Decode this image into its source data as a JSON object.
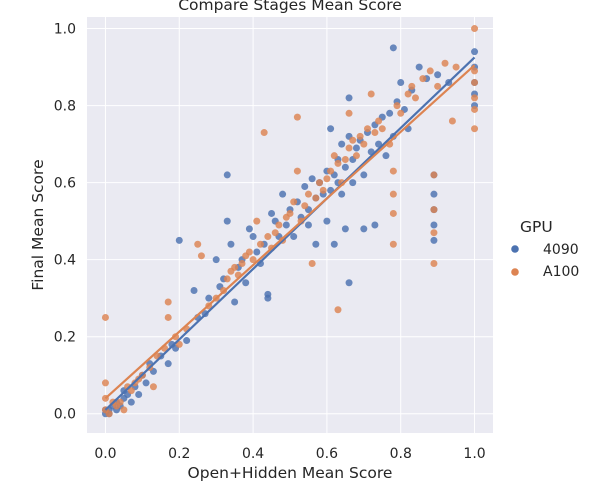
{
  "chart_data": {
    "type": "scatter",
    "title": "Compare Stages Mean Score",
    "xlabel": "Open+Hidden Mean Score",
    "ylabel": "Final Mean Score",
    "xlim": [
      -0.05,
      1.05
    ],
    "ylim": [
      -0.05,
      1.03
    ],
    "xticks": [
      "0.0",
      "0.2",
      "0.4",
      "0.6",
      "0.8",
      "1.0"
    ],
    "yticks": [
      "0.0",
      "0.2",
      "0.4",
      "0.6",
      "0.8",
      "1.0"
    ],
    "grid": true,
    "background": "#eaeaf2",
    "legend": {
      "title": "GPU",
      "placement": "right"
    },
    "series": [
      {
        "name": "4090",
        "color": "#4c72b0",
        "fit": {
          "from": [
            0.0,
            0.01
          ],
          "to": [
            1.0,
            0.925
          ]
        },
        "points": [
          [
            0,
            0
          ],
          [
            0,
            0.01
          ],
          [
            0.01,
            0
          ],
          [
            0.01,
            0.01
          ],
          [
            0.02,
            0.02
          ],
          [
            0.03,
            0.01
          ],
          [
            0.03,
            0.03
          ],
          [
            0.04,
            0.02
          ],
          [
            0.05,
            0.04
          ],
          [
            0.05,
            0.06
          ],
          [
            0.06,
            0.05
          ],
          [
            0.07,
            0.03
          ],
          [
            0.08,
            0.07
          ],
          [
            0.09,
            0.05
          ],
          [
            0.1,
            0.1
          ],
          [
            0.11,
            0.08
          ],
          [
            0.12,
            0.13
          ],
          [
            0.13,
            0.11
          ],
          [
            0.15,
            0.15
          ],
          [
            0.17,
            0.13
          ],
          [
            0.18,
            0.18
          ],
          [
            0.19,
            0.17
          ],
          [
            0.2,
            0.45
          ],
          [
            0.22,
            0.19
          ],
          [
            0.24,
            0.32
          ],
          [
            0.25,
            0.25
          ],
          [
            0.27,
            0.26
          ],
          [
            0.28,
            0.3
          ],
          [
            0.3,
            0.4
          ],
          [
            0.31,
            0.33
          ],
          [
            0.32,
            0.35
          ],
          [
            0.33,
            0.5
          ],
          [
            0.33,
            0.62
          ],
          [
            0.34,
            0.44
          ],
          [
            0.35,
            0.29
          ],
          [
            0.36,
            0.38
          ],
          [
            0.37,
            0.4
          ],
          [
            0.38,
            0.34
          ],
          [
            0.39,
            0.48
          ],
          [
            0.4,
            0.46
          ],
          [
            0.41,
            0.42
          ],
          [
            0.42,
            0.39
          ],
          [
            0.43,
            0.44
          ],
          [
            0.44,
            0.3
          ],
          [
            0.44,
            0.31
          ],
          [
            0.45,
            0.52
          ],
          [
            0.46,
            0.5
          ],
          [
            0.47,
            0.46
          ],
          [
            0.48,
            0.57
          ],
          [
            0.49,
            0.49
          ],
          [
            0.5,
            0.53
          ],
          [
            0.51,
            0.46
          ],
          [
            0.52,
            0.55
          ],
          [
            0.53,
            0.51
          ],
          [
            0.54,
            0.59
          ],
          [
            0.55,
            0.53
          ],
          [
            0.55,
            0.49
          ],
          [
            0.56,
            0.61
          ],
          [
            0.57,
            0.56
          ],
          [
            0.57,
            0.44
          ],
          [
            0.58,
            0.6
          ],
          [
            0.59,
            0.57
          ],
          [
            0.6,
            0.63
          ],
          [
            0.6,
            0.5
          ],
          [
            0.61,
            0.58
          ],
          [
            0.61,
            0.74
          ],
          [
            0.62,
            0.62
          ],
          [
            0.62,
            0.44
          ],
          [
            0.63,
            0.66
          ],
          [
            0.63,
            0.6
          ],
          [
            0.64,
            0.7
          ],
          [
            0.64,
            0.57
          ],
          [
            0.65,
            0.64
          ],
          [
            0.65,
            0.48
          ],
          [
            0.66,
            0.72
          ],
          [
            0.66,
            0.82
          ],
          [
            0.66,
            0.34
          ],
          [
            0.67,
            0.66
          ],
          [
            0.67,
            0.6
          ],
          [
            0.68,
            0.69
          ],
          [
            0.69,
            0.71
          ],
          [
            0.7,
            0.62
          ],
          [
            0.7,
            0.48
          ],
          [
            0.71,
            0.73
          ],
          [
            0.72,
            0.68
          ],
          [
            0.73,
            0.75
          ],
          [
            0.73,
            0.49
          ],
          [
            0.74,
            0.7
          ],
          [
            0.75,
            0.77
          ],
          [
            0.76,
            0.67
          ],
          [
            0.77,
            0.78
          ],
          [
            0.78,
            0.72
          ],
          [
            0.78,
            0.95
          ],
          [
            0.79,
            0.81
          ],
          [
            0.8,
            0.86
          ],
          [
            0.81,
            0.79
          ],
          [
            0.82,
            0.74
          ],
          [
            0.83,
            0.84
          ],
          [
            0.85,
            0.9
          ],
          [
            0.87,
            0.87
          ],
          [
            0.89,
            0.62
          ],
          [
            0.89,
            0.57
          ],
          [
            0.89,
            0.53
          ],
          [
            0.89,
            0.49
          ],
          [
            0.89,
            0.45
          ],
          [
            0.9,
            0.88
          ],
          [
            0.93,
            0.86
          ],
          [
            1,
            0.94
          ],
          [
            1,
            0.9
          ],
          [
            1,
            0.86
          ],
          [
            1,
            0.83
          ],
          [
            1,
            0.8
          ]
        ]
      },
      {
        "name": "A100",
        "color": "#dd8452",
        "fit": {
          "from": [
            0.0,
            0.04
          ],
          "to": [
            1.0,
            0.905
          ]
        },
        "points": [
          [
            0,
            0.25
          ],
          [
            0,
            0.08
          ],
          [
            0,
            0.04
          ],
          [
            0,
            0.01
          ],
          [
            0.01,
            0
          ],
          [
            0.02,
            0.03
          ],
          [
            0.03,
            0.02
          ],
          [
            0.04,
            0.03
          ],
          [
            0.05,
            0.01
          ],
          [
            0.06,
            0.07
          ],
          [
            0.07,
            0.06
          ],
          [
            0.08,
            0.08
          ],
          [
            0.09,
            0.09
          ],
          [
            0.1,
            0.1
          ],
          [
            0.12,
            0.12
          ],
          [
            0.13,
            0.07
          ],
          [
            0.14,
            0.15
          ],
          [
            0.16,
            0.17
          ],
          [
            0.17,
            0.25
          ],
          [
            0.17,
            0.29
          ],
          [
            0.19,
            0.2
          ],
          [
            0.2,
            0.18
          ],
          [
            0.22,
            0.22
          ],
          [
            0.25,
            0.44
          ],
          [
            0.26,
            0.41
          ],
          [
            0.28,
            0.28
          ],
          [
            0.3,
            0.3
          ],
          [
            0.32,
            0.32
          ],
          [
            0.33,
            0.35
          ],
          [
            0.34,
            0.37
          ],
          [
            0.35,
            0.38
          ],
          [
            0.36,
            0.36
          ],
          [
            0.37,
            0.39
          ],
          [
            0.38,
            0.41
          ],
          [
            0.39,
            0.42
          ],
          [
            0.4,
            0.4
          ],
          [
            0.41,
            0.5
          ],
          [
            0.42,
            0.44
          ],
          [
            0.43,
            0.73
          ],
          [
            0.44,
            0.46
          ],
          [
            0.45,
            0.43
          ],
          [
            0.46,
            0.47
          ],
          [
            0.47,
            0.49
          ],
          [
            0.48,
            0.45
          ],
          [
            0.49,
            0.51
          ],
          [
            0.5,
            0.52
          ],
          [
            0.51,
            0.55
          ],
          [
            0.52,
            0.77
          ],
          [
            0.52,
            0.63
          ],
          [
            0.53,
            0.5
          ],
          [
            0.54,
            0.54
          ],
          [
            0.55,
            0.57
          ],
          [
            0.56,
            0.39
          ],
          [
            0.57,
            0.56
          ],
          [
            0.58,
            0.6
          ],
          [
            0.59,
            0.58
          ],
          [
            0.6,
            0.61
          ],
          [
            0.61,
            0.63
          ],
          [
            0.62,
            0.67
          ],
          [
            0.63,
            0.65
          ],
          [
            0.63,
            0.27
          ],
          [
            0.64,
            0.6
          ],
          [
            0.65,
            0.66
          ],
          [
            0.66,
            0.69
          ],
          [
            0.66,
            0.78
          ],
          [
            0.67,
            0.71
          ],
          [
            0.68,
            0.67
          ],
          [
            0.69,
            0.72
          ],
          [
            0.7,
            0.7
          ],
          [
            0.71,
            0.74
          ],
          [
            0.72,
            0.83
          ],
          [
            0.73,
            0.73
          ],
          [
            0.74,
            0.76
          ],
          [
            0.75,
            0.74
          ],
          [
            0.77,
            0.7
          ],
          [
            0.78,
            0.57
          ],
          [
            0.78,
            0.52
          ],
          [
            0.78,
            0.44
          ],
          [
            0.78,
            0.63
          ],
          [
            0.79,
            0.8
          ],
          [
            0.8,
            0.78
          ],
          [
            0.82,
            0.83
          ],
          [
            0.83,
            0.85
          ],
          [
            0.84,
            0.82
          ],
          [
            0.86,
            0.87
          ],
          [
            0.88,
            0.89
          ],
          [
            0.89,
            0.39
          ],
          [
            0.89,
            0.47
          ],
          [
            0.89,
            0.53
          ],
          [
            0.89,
            0.62
          ],
          [
            0.9,
            0.85
          ],
          [
            0.92,
            0.91
          ],
          [
            0.94,
            0.76
          ],
          [
            0.95,
            0.9
          ],
          [
            1,
            1
          ],
          [
            1,
            0.89
          ],
          [
            1,
            0.86
          ],
          [
            1,
            0.82
          ],
          [
            1,
            0.79
          ],
          [
            1,
            0.74
          ]
        ]
      }
    ]
  }
}
